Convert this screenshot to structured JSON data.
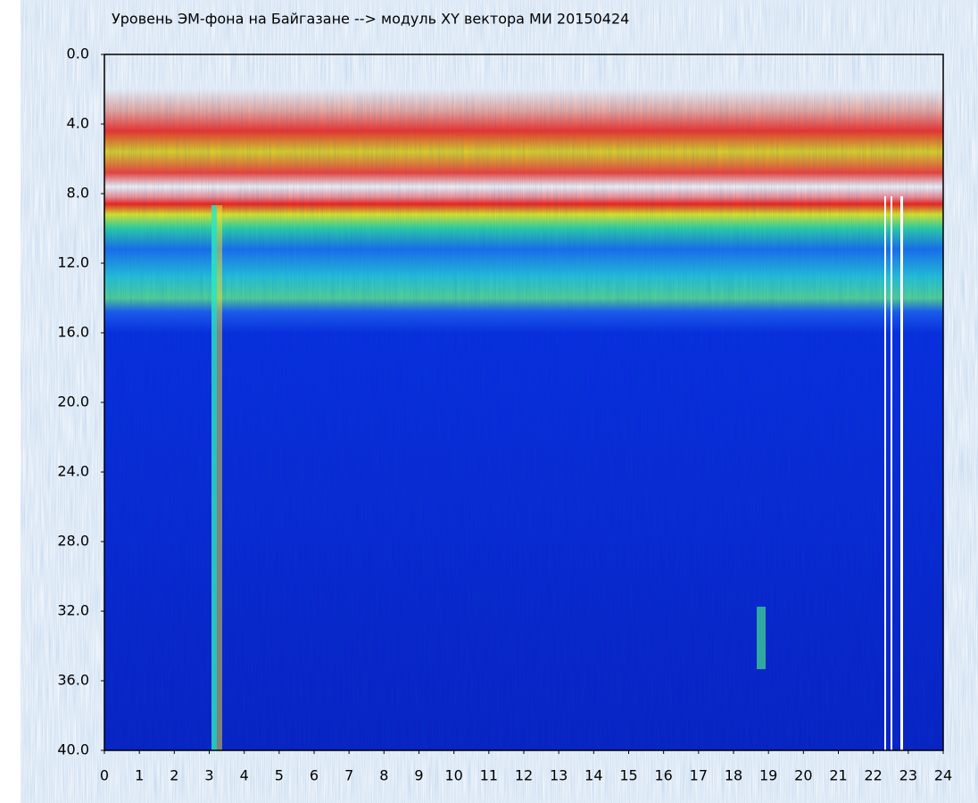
{
  "chart_data": {
    "type": "heatmap",
    "title": "Уровень ЭМ-фона на Байгазане  -->  модуль XY вектора МИ  20150424",
    "xlim": [
      0,
      24
    ],
    "xticks": [
      0,
      1,
      2,
      3,
      4,
      5,
      6,
      7,
      8,
      9,
      10,
      11,
      12,
      13,
      14,
      15,
      16,
      17,
      18,
      19,
      20,
      21,
      22,
      23,
      24
    ],
    "ylim": [
      40,
      0
    ],
    "yticks": [
      {
        "value": 0,
        "label": "0.0"
      },
      {
        "value": 4,
        "label": "4.0"
      },
      {
        "value": 8,
        "label": "8.0"
      },
      {
        "value": 12,
        "label": "12.0"
      },
      {
        "value": 16,
        "label": "16.0"
      },
      {
        "value": 20,
        "label": "20.0"
      },
      {
        "value": 24,
        "label": "24.0"
      },
      {
        "value": 28,
        "label": "28.0"
      },
      {
        "value": 32,
        "label": "32.0"
      },
      {
        "value": 36,
        "label": "36.0"
      },
      {
        "value": 40,
        "label": "40.0"
      }
    ],
    "grid": false
  }
}
